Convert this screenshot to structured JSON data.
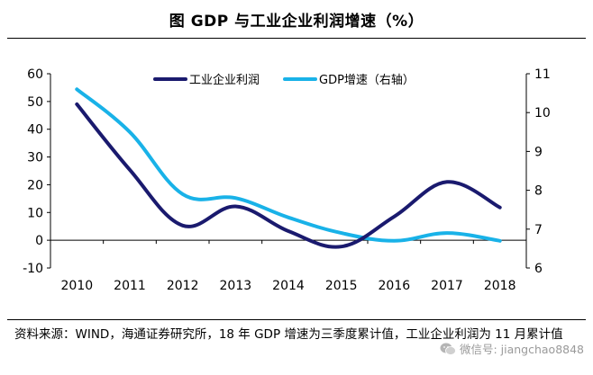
{
  "chart_data": {
    "type": "line",
    "title": "图  GDP 与工业企业利润增速（%）",
    "categories": [
      "2010",
      "2011",
      "2012",
      "2013",
      "2014",
      "2015",
      "2016",
      "2017",
      "2018"
    ],
    "series": [
      {
        "name": "工业企业利润",
        "axis": "left",
        "color": "#1a1a6e",
        "values": [
          49,
          25.4,
          5.3,
          12.2,
          3.3,
          -2.3,
          8.5,
          21,
          11.8
        ]
      },
      {
        "name": "GDP增速（右轴）",
        "axis": "right",
        "color": "#19b2e8",
        "values": [
          10.6,
          9.5,
          7.9,
          7.8,
          7.3,
          6.9,
          6.7,
          6.9,
          6.7
        ]
      }
    ],
    "y_left": {
      "min": -10,
      "max": 60,
      "ticks": [
        -10,
        0,
        10,
        20,
        30,
        40,
        50,
        60
      ]
    },
    "y_right": {
      "min": 6,
      "max": 11,
      "ticks": [
        6,
        7,
        8,
        9,
        10,
        11
      ]
    },
    "grid": false,
    "legend": "top-center"
  },
  "source_text": "资料来源：WIND，海通证券研究所，18 年 GDP 增速为三季度累计值，工业企业利润为 11 月累计值",
  "watermark_text": "微信号: jiangchao8848"
}
